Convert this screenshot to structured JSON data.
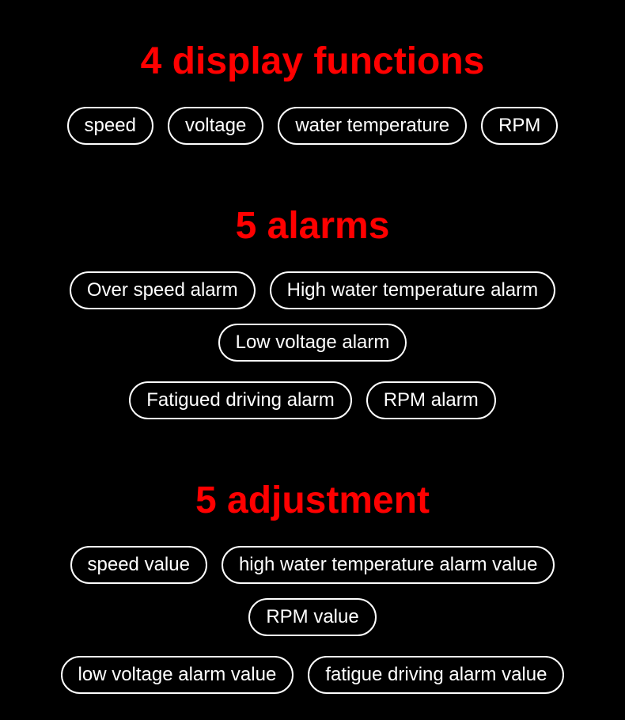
{
  "background_color": "#000000",
  "title_color": "#ff0000",
  "pill_text_color": "#ffffff",
  "pill_border_color": "#ffffff",
  "sections": {
    "display": {
      "title": "4 display functions",
      "items": [
        "speed",
        "voltage",
        "water temperature",
        "RPM"
      ]
    },
    "alarms": {
      "title": "5 alarms",
      "row1": [
        "Over speed alarm",
        "High water temperature alarm",
        "Low voltage alarm"
      ],
      "row2": [
        "Fatigued driving alarm",
        "RPM alarm"
      ]
    },
    "adjustment": {
      "title": "5 adjustment",
      "row1": [
        "speed value",
        "high water temperature alarm value",
        "RPM value"
      ],
      "row2": [
        "low voltage alarm value",
        "fatigue driving alarm value"
      ]
    }
  }
}
